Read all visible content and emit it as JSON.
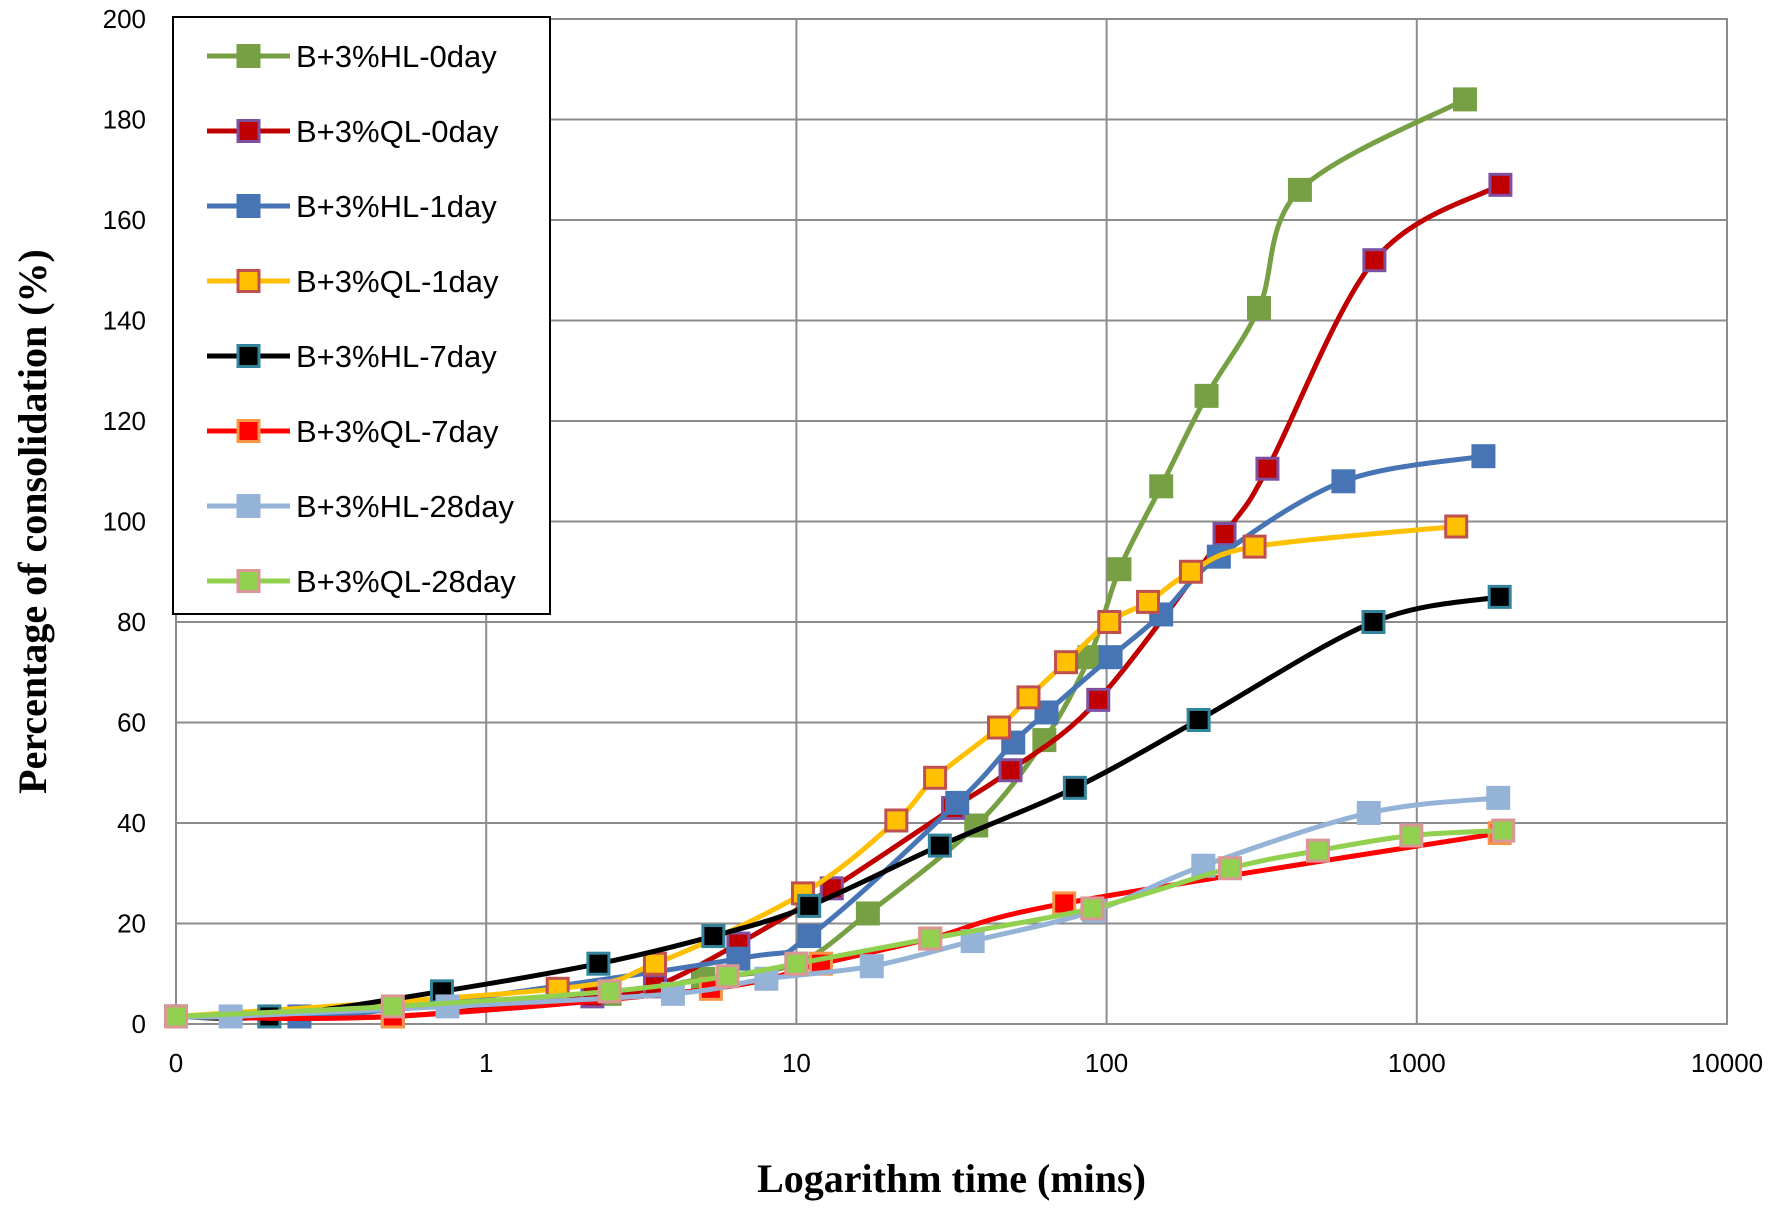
{
  "chart_data": {
    "type": "line",
    "title": "",
    "xlabel": "Logarithm time (mins)",
    "ylabel": "Percentage of consolidation (%)",
    "xscale": "log",
    "xlim": [
      0.1,
      10000
    ],
    "ylim": [
      0,
      200
    ],
    "grid": true,
    "legend_position": "top-left",
    "x_tick_labels": [
      {
        "value": 0.1,
        "label": "0"
      },
      {
        "value": 1,
        "label": "1"
      },
      {
        "value": 10,
        "label": "10"
      },
      {
        "value": 100,
        "label": "100"
      },
      {
        "value": 1000,
        "label": "1000"
      },
      {
        "value": 10000,
        "label": "10000"
      }
    ],
    "y_tick_labels": [
      {
        "value": 0,
        "label": "0"
      },
      {
        "value": 20,
        "label": "20"
      },
      {
        "value": 40,
        "label": "40"
      },
      {
        "value": 60,
        "label": "60"
      },
      {
        "value": 80,
        "label": "80"
      },
      {
        "value": 100,
        "label": "100"
      },
      {
        "value": 120,
        "label": "120"
      },
      {
        "value": 140,
        "label": "140"
      },
      {
        "value": 160,
        "label": "160"
      },
      {
        "value": 180,
        "label": "180"
      },
      {
        "value": 200,
        "label": "200"
      }
    ],
    "series": [
      {
        "name": "B+3%HL-0day",
        "color": "#77A044",
        "marker_fill": "#77A044",
        "marker_edge": "#77A044",
        "x": [
          0.1,
          0.2,
          0.5,
          2.5,
          5,
          10,
          17,
          38,
          63,
          88,
          110,
          150,
          210,
          310,
          420,
          1430
        ],
        "y": [
          1.5,
          1.5,
          3,
          6,
          9,
          12,
          22,
          39.5,
          56.5,
          73,
          90.5,
          107,
          125,
          142.5,
          166,
          184
        ]
      },
      {
        "name": "B+3%QL-0day",
        "color": "#C00000",
        "marker_fill": "#C00000",
        "marker_edge": "#7F4FA0",
        "x": [
          0.1,
          0.5,
          2.2,
          3.5,
          6.5,
          13,
          32,
          49,
          94,
          240,
          330,
          730,
          1860
        ],
        "y": [
          1.5,
          1.5,
          5.5,
          7.5,
          16,
          27,
          43,
          50.5,
          64.5,
          97.5,
          110.5,
          152,
          167
        ]
      },
      {
        "name": "B+3%HL-1day",
        "color": "#4674B5",
        "marker_fill": "#4674B5",
        "marker_edge": "#4674B5",
        "x": [
          0.1,
          0.25,
          0.5,
          6.5,
          11,
          33,
          50,
          64,
          103,
          150,
          230,
          580,
          1640
        ],
        "y": [
          1.5,
          1.5,
          3,
          13,
          17.5,
          44,
          56,
          62,
          73,
          81.5,
          93,
          108,
          113
        ]
      },
      {
        "name": "B+3%QL-1day",
        "color": "#FFC000",
        "marker_fill": "#FFC000",
        "marker_edge": "#C0504D",
        "x": [
          0.1,
          1.7,
          3.5,
          10.5,
          21,
          28,
          45,
          56,
          74,
          102,
          136,
          187,
          300,
          1340
        ],
        "y": [
          1.5,
          7,
          12,
          26,
          40.5,
          49,
          59,
          65,
          72,
          80,
          84,
          90,
          95,
          99
        ]
      },
      {
        "name": "B+3%HL-7day",
        "color": "#000000",
        "marker_fill": "#000000",
        "marker_edge": "#31849B",
        "x": [
          0.1,
          0.2,
          0.72,
          2.3,
          5.4,
          11,
          29,
          79,
          198,
          725,
          1850
        ],
        "y": [
          1.5,
          1.5,
          6.5,
          12,
          17.5,
          23.5,
          35.5,
          47,
          60.5,
          80,
          85
        ]
      },
      {
        "name": "B+3%QL-7day",
        "color": "#FF0000",
        "marker_fill": "#FF0000",
        "marker_edge": "#F79646",
        "x": [
          0.1,
          0.5,
          5.3,
          12,
          27,
          73,
          1850
        ],
        "y": [
          1.5,
          1.5,
          7,
          12,
          17,
          24,
          38
        ]
      },
      {
        "name": "B+3%HL-28day",
        "color": "#95B3D7",
        "marker_fill": "#95B3D7",
        "marker_edge": "#95B3D7",
        "x": [
          0.1,
          0.15,
          0.75,
          4,
          8,
          17.5,
          37,
          91,
          205,
          700,
          1830
        ],
        "y": [
          1.5,
          1.5,
          3.5,
          6,
          9,
          11.5,
          16.5,
          22.5,
          31.5,
          42,
          45
        ]
      },
      {
        "name": "B+3%QL-28day",
        "color": "#92D050",
        "marker_fill": "#92D050",
        "marker_edge": "#D99694",
        "x": [
          0.1,
          0.5,
          2.5,
          6,
          10,
          27,
          90,
          250,
          480,
          960,
          1900
        ],
        "y": [
          1.5,
          3.5,
          6.5,
          9.5,
          12,
          17,
          23,
          31,
          34.5,
          37.5,
          38.5
        ]
      }
    ]
  }
}
